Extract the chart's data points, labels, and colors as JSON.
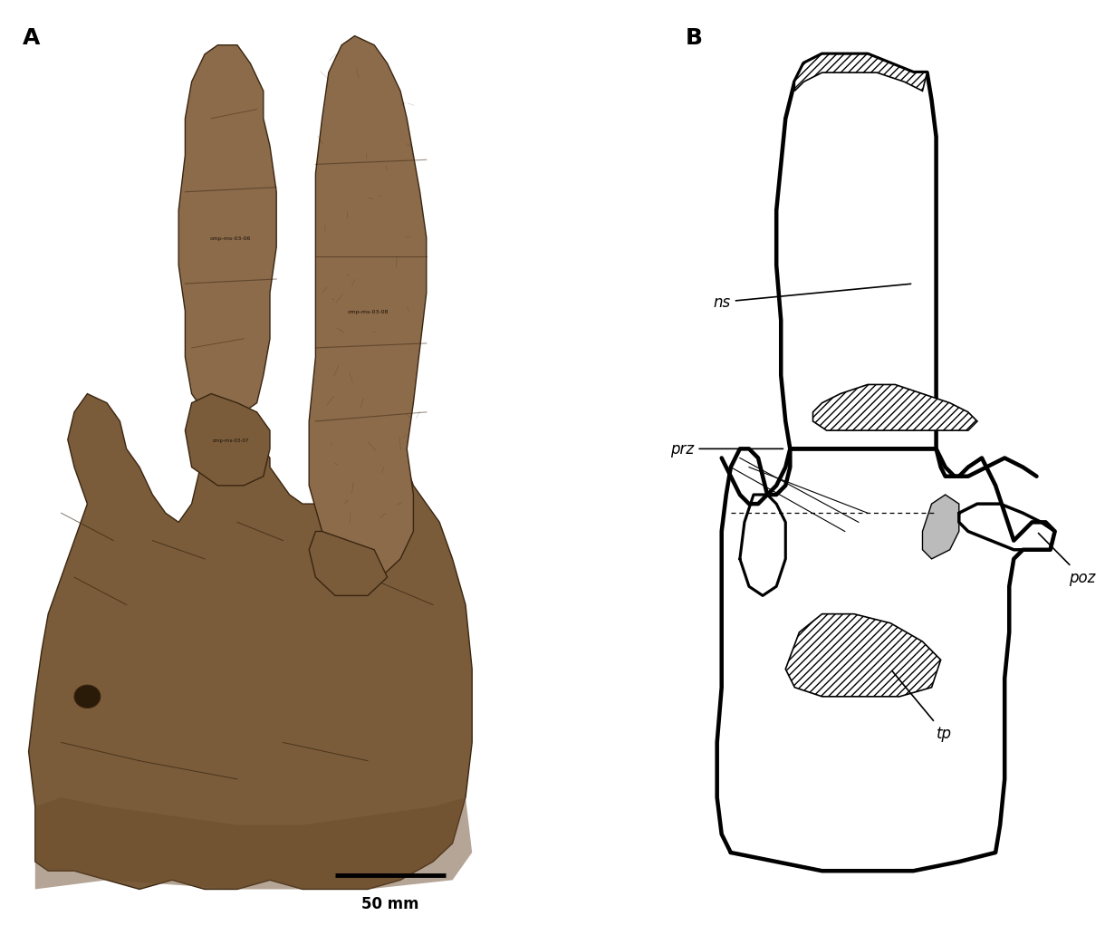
{
  "fig_width": 12.0,
  "fig_height": 10.55,
  "dpi": 100,
  "background_color": "#ffffff",
  "label_A": "A",
  "label_B": "B",
  "label_fontsize": 18,
  "label_fontweight": "bold",
  "scale_bar_text": "50 mm",
  "annotation_fontsize": 12,
  "line_color": "#000000",
  "line_width": 2.5,
  "fossil_color_1": "#8B6B4A",
  "fossil_color_2": "#7A5C3A",
  "fossil_color_3": "#6B4D2E",
  "fossil_color_dark": "#3A2510",
  "fossil_color_shadow": "#2A1A08",
  "fossil_highlight": "#C4956A"
}
